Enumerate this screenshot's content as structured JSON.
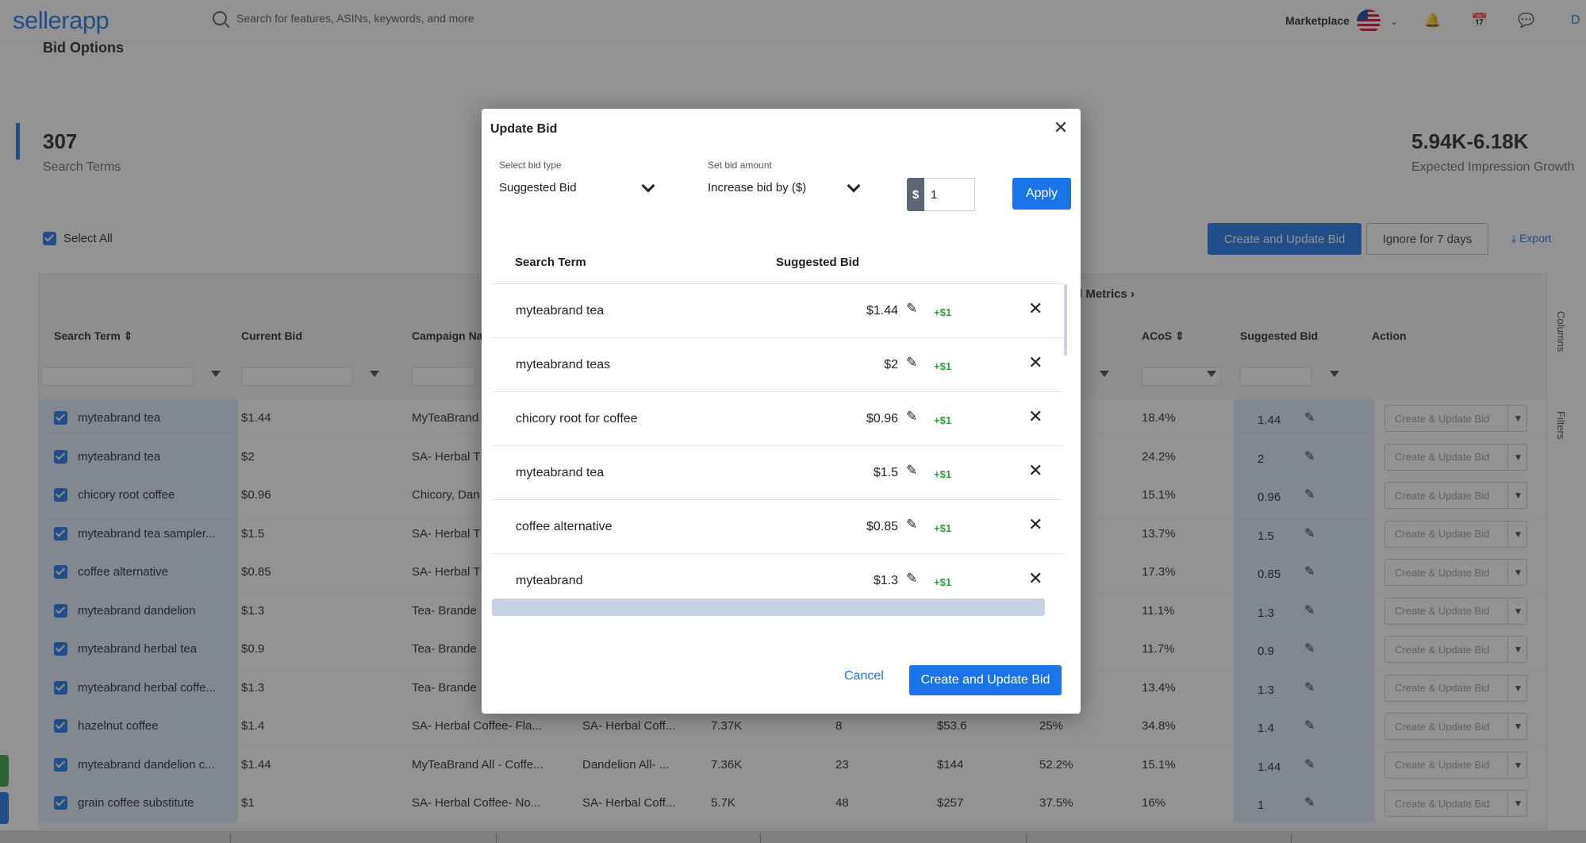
{
  "app": {
    "logo": "sellerapp"
  },
  "topbar": {
    "search_placeholder": "Search for features, ASINs, keywords, and more",
    "marketplace_label": "Marketplace",
    "avatar_initial": "D"
  },
  "page": {
    "heading": "Bid Options",
    "stats": [
      {
        "value": "307",
        "label": "Search Terms"
      },
      {
        "value": "5.94K-6.18K",
        "label": "Expected Impression Growth"
      }
    ],
    "select_all_label": "Select All",
    "create_update_label": "Create and Update Bid",
    "ignore_label": "Ignore for 7 days",
    "export_label": "Export",
    "metrics_link": "l Metrics",
    "columns_label": "Columns",
    "filters_label": "Filters"
  },
  "table": {
    "headers": {
      "search_term": "Search Term",
      "current_bid": "Current Bid",
      "campaign": "Campaign Na",
      "acos": "ACoS",
      "suggested_bid": "Suggested Bid",
      "action": "Action"
    },
    "action_placeholder": "Create & Update Bid",
    "rows": [
      {
        "term": "myteabrand tea",
        "bid": "$1.44",
        "campaign": "MyTeaBrand",
        "adgroup": "",
        "impr": "",
        "orders": "",
        "sales": "",
        "cvr": "",
        "acos": "18.4%",
        "sugg": "1.44"
      },
      {
        "term": "myteabrand tea",
        "bid": "$2",
        "campaign": "SA- Herbal T",
        "adgroup": "",
        "impr": "",
        "orders": "",
        "sales": "",
        "cvr": "",
        "acos": "24.2%",
        "sugg": "2"
      },
      {
        "term": "chicory root coffee",
        "bid": "$0.96",
        "campaign": "Chicory, Dan",
        "adgroup": "",
        "impr": "",
        "orders": "",
        "sales": "",
        "cvr": "",
        "acos": "15.1%",
        "sugg": "0.96"
      },
      {
        "term": "myteabrand tea sampler...",
        "bid": "$1.5",
        "campaign": "SA- Herbal T",
        "adgroup": "",
        "impr": "",
        "orders": "",
        "sales": "",
        "cvr": "",
        "acos": "13.7%",
        "sugg": "1.5"
      },
      {
        "term": "coffee alternative",
        "bid": "$0.85",
        "campaign": "SA- Herbal T",
        "adgroup": "",
        "impr": "",
        "orders": "",
        "sales": "",
        "cvr": "",
        "acos": "17.3%",
        "sugg": "0.85"
      },
      {
        "term": "myteabrand dandelion",
        "bid": "$1.3",
        "campaign": "Tea- Brande",
        "adgroup": "",
        "impr": "",
        "orders": "",
        "sales": "",
        "cvr": "",
        "acos": "11.1%",
        "sugg": "1.3"
      },
      {
        "term": "myteabrand herbal tea",
        "bid": "$0.9",
        "campaign": "Tea- Brande",
        "adgroup": "",
        "impr": "",
        "orders": "",
        "sales": "",
        "cvr": "",
        "acos": "11.7%",
        "sugg": "0.9"
      },
      {
        "term": "myteabrand herbal coffe...",
        "bid": "$1.3",
        "campaign": "Tea- Brande",
        "adgroup": "",
        "impr": "",
        "orders": "",
        "sales": "",
        "cvr": "",
        "acos": "13.4%",
        "sugg": "1.3"
      },
      {
        "term": "hazelnut coffee",
        "bid": "$1.4",
        "campaign": "SA- Herbal Coffee- Fla...",
        "adgroup": "SA- Herbal Coff...",
        "impr": "7.37K",
        "orders": "8",
        "sales": "$53.6",
        "cvr": "25%",
        "acos": "34.8%",
        "sugg": "1.4"
      },
      {
        "term": "myteabrand dandelion c...",
        "bid": "$1.44",
        "campaign": "MyTeaBrand All - Coffe...",
        "adgroup": "Dandelion All- ...",
        "impr": "7.36K",
        "orders": "23",
        "sales": "$144",
        "cvr": "52.2%",
        "acos": "15.1%",
        "sugg": "1.44"
      },
      {
        "term": "grain coffee substitute",
        "bid": "$1",
        "campaign": "SA- Herbal Coffee- No...",
        "adgroup": "SA- Herbal Coff...",
        "impr": "5.7K",
        "orders": "48",
        "sales": "$257",
        "cvr": "37.5%",
        "acos": "16%",
        "sugg": "1"
      }
    ]
  },
  "modal": {
    "title": "Update Bid",
    "bid_type_label": "Select bid type",
    "bid_type_value": "Suggested Bid",
    "bid_amount_label": "Set bid amount",
    "bid_amount_value": "Increase bid by ($)",
    "currency_prefix": "$",
    "amount_value": "1",
    "apply_label": "Apply",
    "col_search_term": "Search Term",
    "col_suggested_bid": "Suggested Bid",
    "increment_label": "+$1",
    "rows": [
      {
        "term": "myteabrand tea",
        "bid": "$1.44"
      },
      {
        "term": "myteabrand teas",
        "bid": "$2"
      },
      {
        "term": "chicory root for coffee",
        "bid": "$0.96"
      },
      {
        "term": "myteabrand tea",
        "bid": "$1.5"
      },
      {
        "term": "coffee alternative",
        "bid": "$0.85"
      },
      {
        "term": "myteabrand",
        "bid": "$1.3"
      }
    ],
    "cancel_label": "Cancel",
    "create_label": "Create and Update Bid"
  },
  "colors": {
    "primary": "#1a73e8",
    "increment_green": "#2e9e3e",
    "selected_row": "#dbe9fb"
  }
}
